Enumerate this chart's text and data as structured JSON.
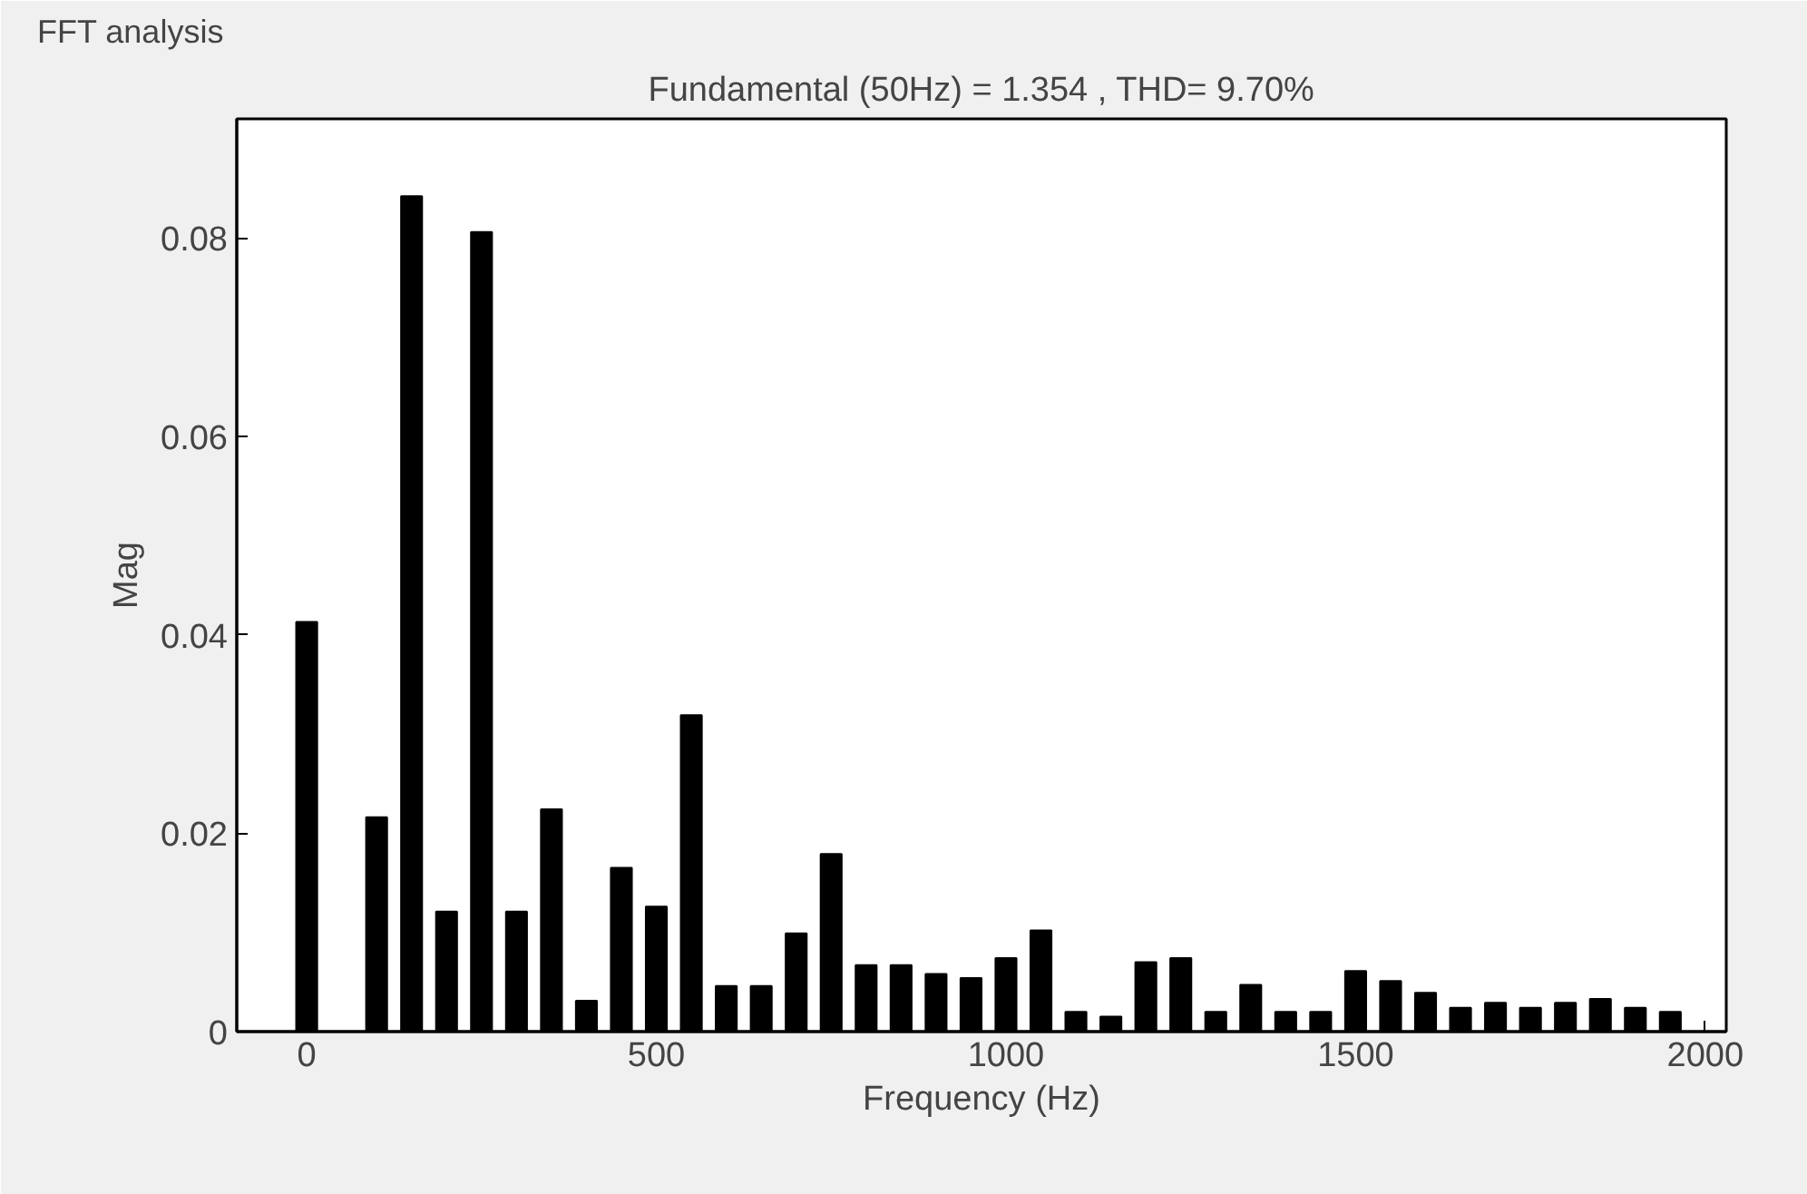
{
  "chart_data": {
    "type": "bar",
    "title": "FFT analysis",
    "subtitle": "Fundamental (50Hz) = 1.354 , THD= 9.70%",
    "xlabel": "Frequency (Hz)",
    "ylabel": "Mag",
    "x": [
      0,
      50,
      100,
      150,
      200,
      250,
      300,
      350,
      400,
      450,
      500,
      550,
      600,
      650,
      700,
      750,
      800,
      850,
      900,
      950,
      1000,
      1050,
      1100,
      1150,
      1200,
      1250,
      1300,
      1350,
      1400,
      1450,
      1500,
      1550,
      1600,
      1650,
      1700,
      1750,
      1800,
      1850,
      1900,
      1950
    ],
    "values": [
      0.0413,
      null,
      0.0216,
      0.0842,
      0.0121,
      0.0806,
      0.0121,
      0.0224,
      0.0031,
      0.0165,
      0.0126,
      0.0319,
      0.0046,
      0.0046,
      0.0099,
      0.0179,
      0.0067,
      0.0067,
      0.0058,
      0.0054,
      0.0074,
      0.0102,
      0.002,
      0.0015,
      0.007,
      0.0074,
      0.002,
      0.0047,
      0.002,
      0.002,
      0.0061,
      0.0051,
      0.0039,
      0.0024,
      0.0029,
      0.0024,
      0.0029,
      0.0033,
      0.0024,
      0.002
    ],
    "color": "#000000",
    "xlim": [
      -100,
      2030
    ],
    "xticks": [
      0,
      500,
      1000,
      1500,
      2000
    ],
    "ylim": [
      0,
      0.092
    ],
    "yticks": [
      0,
      0.02,
      0.04,
      0.06,
      0.08
    ],
    "grid": false
  }
}
